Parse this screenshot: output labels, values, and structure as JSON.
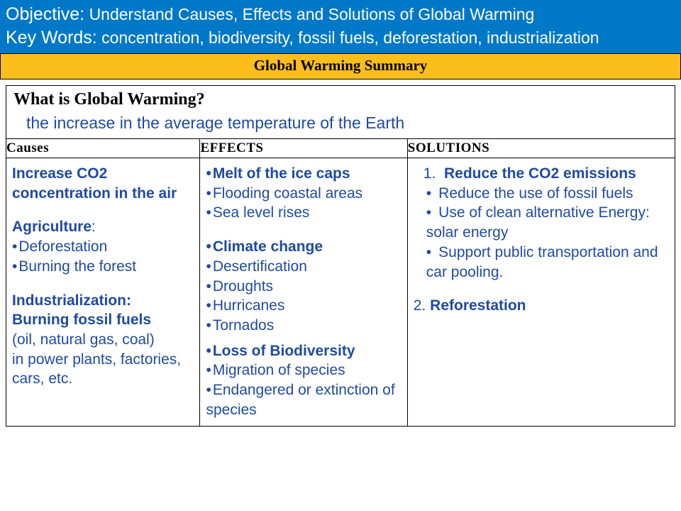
{
  "colors": {
    "header_bg": "#0078c8",
    "banner_bg": "#fbbe1b",
    "text_blue": "#1f4aa0",
    "border": "#000000",
    "white": "#ffffff"
  },
  "header": {
    "objective_label": "Objective:",
    "objective_text": "Understand Causes, Effects and Solutions of Global Warming",
    "keywords_label": "Key Words:",
    "keywords_text": "concentration, biodiversity, fossil fuels, deforestation, industrialization"
  },
  "banner": "Global Warming Summary",
  "question": "What is Global Warming?",
  "answer": "the increase in the average temperature of the Earth",
  "columns": {
    "causes": "Causes",
    "effects": "EFFECTS",
    "solutions": "SOLUTIONS"
  },
  "causes": {
    "lead": "Increase CO2 concentration in the air",
    "agri_label": "Agriculture",
    "agri_items": [
      "Deforestation",
      "Burning the forest"
    ],
    "indus_label": "Industrialization:",
    "indus_bold": "Burning fossil fuels",
    "indus_rest1": "(oil, natural gas, coal)",
    "indus_rest2": "in power plants, factories, cars, etc."
  },
  "effects": {
    "g1_head": "Melt of the ice caps",
    "g1_items": [
      "Flooding coastal areas",
      "Sea level rises"
    ],
    "g2_head": "Climate change",
    "g2_items": [
      "Desertification",
      "Droughts",
      "Hurricanes",
      "Tornados"
    ],
    "g3_head": "Loss of Biodiversity",
    "g3_items": [
      "Migration of species",
      "Endangered or extinction of species"
    ]
  },
  "solutions": {
    "s1_num": "1.",
    "s1_head": "Reduce the CO2 emissions",
    "s1_items": [
      "Reduce the use of fossil fuels",
      "Use of clean alternative Energy: solar energy",
      "Support public transportation and car pooling."
    ],
    "s2_num": "2.",
    "s2_head": "Reforestation"
  },
  "layout": {
    "col_widths": [
      "29%",
      "31%",
      "40%"
    ]
  }
}
